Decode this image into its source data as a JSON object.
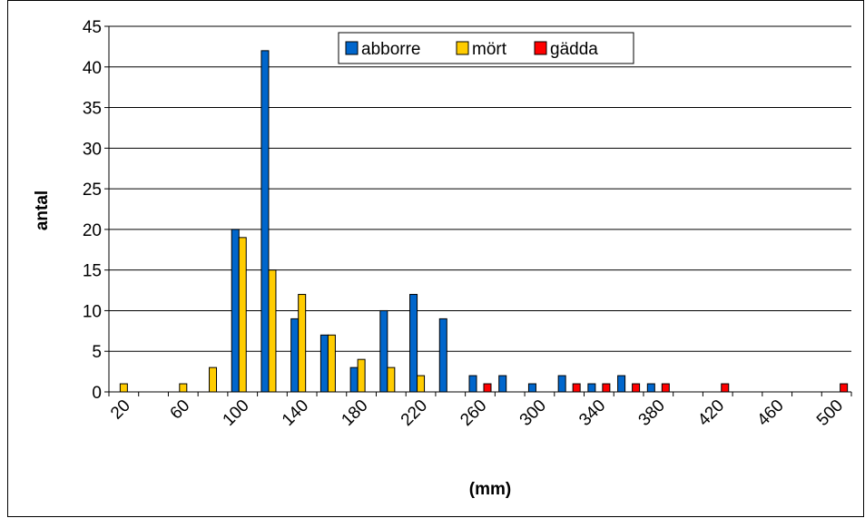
{
  "chart_data": {
    "type": "bar",
    "title": "",
    "xlabel": "(mm)",
    "ylabel": "antal",
    "ylim": [
      0,
      45
    ],
    "yticks": [
      "0",
      "5",
      "10",
      "15",
      "20",
      "25",
      "30",
      "35",
      "40",
      "45"
    ],
    "categories": [
      20,
      40,
      60,
      80,
      100,
      120,
      140,
      160,
      180,
      200,
      220,
      240,
      260,
      280,
      300,
      320,
      340,
      360,
      380,
      400,
      420,
      440,
      460,
      480,
      500
    ],
    "xtick_labels": [
      "20",
      "60",
      "100",
      "140",
      "180",
      "220",
      "260",
      "300",
      "340",
      "380",
      "420",
      "460",
      "500"
    ],
    "grid": "horizontal",
    "legend": "top-center",
    "series": [
      {
        "name": "abborre",
        "color": "#0066cc",
        "values": [
          0,
          0,
          0,
          0,
          20,
          42,
          9,
          7,
          3,
          10,
          12,
          9,
          2,
          2,
          1,
          2,
          1,
          2,
          1,
          0,
          0,
          0,
          0,
          0,
          0
        ]
      },
      {
        "name": "mört",
        "color": "#ffcc00",
        "values": [
          1,
          0,
          1,
          3,
          19,
          15,
          12,
          7,
          4,
          3,
          2,
          0,
          0,
          0,
          0,
          0,
          0,
          0,
          0,
          0,
          0,
          0,
          0,
          0,
          0
        ]
      },
      {
        "name": "gädda",
        "color": "#ff0000",
        "values": [
          0,
          0,
          0,
          0,
          0,
          0,
          0,
          0,
          0,
          0,
          0,
          0,
          1,
          0,
          0,
          1,
          1,
          1,
          1,
          0,
          1,
          0,
          0,
          0,
          1
        ]
      }
    ]
  }
}
